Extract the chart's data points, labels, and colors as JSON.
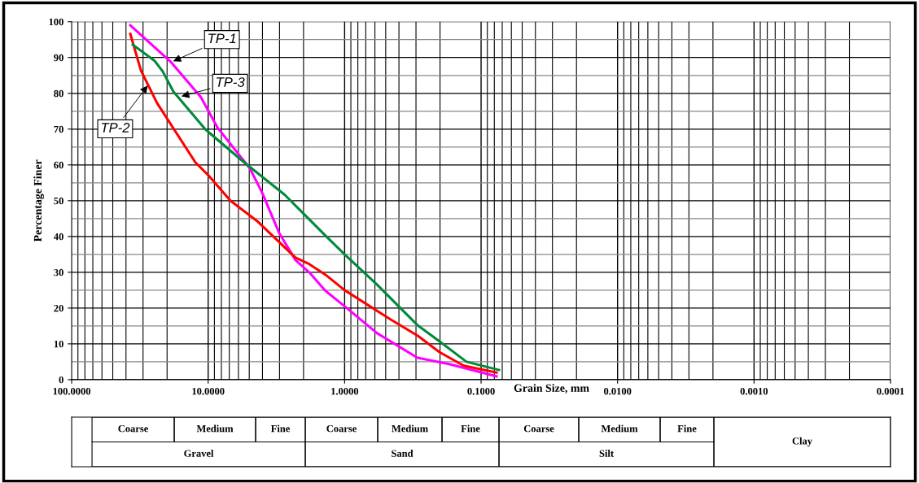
{
  "chart_data": {
    "type": "line",
    "xlabel": "Grain Size, mm",
    "ylabel": "Percentage Finer",
    "log": "x",
    "grid": true,
    "xlim": [
      100,
      0.0001
    ],
    "ylim": [
      0,
      100
    ],
    "xticks": [
      {
        "value": 100,
        "label": "100.0000"
      },
      {
        "value": 10,
        "label": "10.0000"
      },
      {
        "value": 1,
        "label": "1.0000"
      },
      {
        "value": 0.1,
        "label": "0.1000"
      },
      {
        "value": 0.01,
        "label": "0.0100"
      },
      {
        "value": 0.001,
        "label": "0.0010"
      },
      {
        "value": 0.0001,
        "label": "0.0001"
      }
    ],
    "yticks": [
      0,
      10,
      20,
      30,
      40,
      50,
      60,
      70,
      80,
      90,
      100
    ],
    "series": [
      {
        "color": "#ff00ff",
        "x": [
          37.2,
          18.7,
          11.3,
          8.57,
          4.94,
          4.03,
          3.02,
          2.29,
          1.82,
          1.38,
          1.0,
          0.58,
          0.292,
          0.169,
          0.077
        ],
        "values": [
          99,
          88.7,
          78.9,
          70.5,
          59,
          52.3,
          41,
          33.4,
          30,
          24.8,
          20.5,
          13,
          6.1,
          4.3,
          0.9
        ]
      },
      {
        "color": "#ff0000",
        "x": [
          37.2,
          31.1,
          23.7,
          12.4,
          9.8,
          6.87,
          4.31,
          2.29,
          1.82,
          1.38,
          1.0,
          0.459,
          0.292,
          0.202,
          0.134,
          0.077
        ],
        "values": [
          96.6,
          86.4,
          77.3,
          60.7,
          56.8,
          50,
          44.1,
          34.1,
          32.3,
          29.3,
          25,
          16.8,
          12.3,
          7.7,
          3.9,
          2
        ]
      },
      {
        "color": "#008a3a",
        "x": [
          35.7,
          24.7,
          21.5,
          18,
          10.4,
          5.44,
          2.74,
          1.82,
          1.38,
          1.0,
          0.58,
          0.292,
          0.202,
          0.128,
          0.074
        ],
        "values": [
          93.6,
          89.1,
          86.1,
          80.5,
          69.8,
          60.7,
          51.6,
          44.8,
          40.2,
          35,
          26.6,
          15.2,
          10.7,
          5,
          2.7
        ]
      }
    ],
    "annotations": [
      {
        "text": "TP-1",
        "x": 18.7,
        "y": 88.7
      },
      {
        "text": "TP-2",
        "x": 27.1,
        "y": 82.7
      },
      {
        "text": "TP-3",
        "x": 16.3,
        "y": 79
      },
      "Coarse",
      "Medium",
      "Fine",
      "Coarse",
      "Medium",
      "Fine",
      "Coarse",
      "Medium",
      "Fine",
      "Gravel",
      "Sand",
      "Silt",
      "Clay"
    ]
  }
}
